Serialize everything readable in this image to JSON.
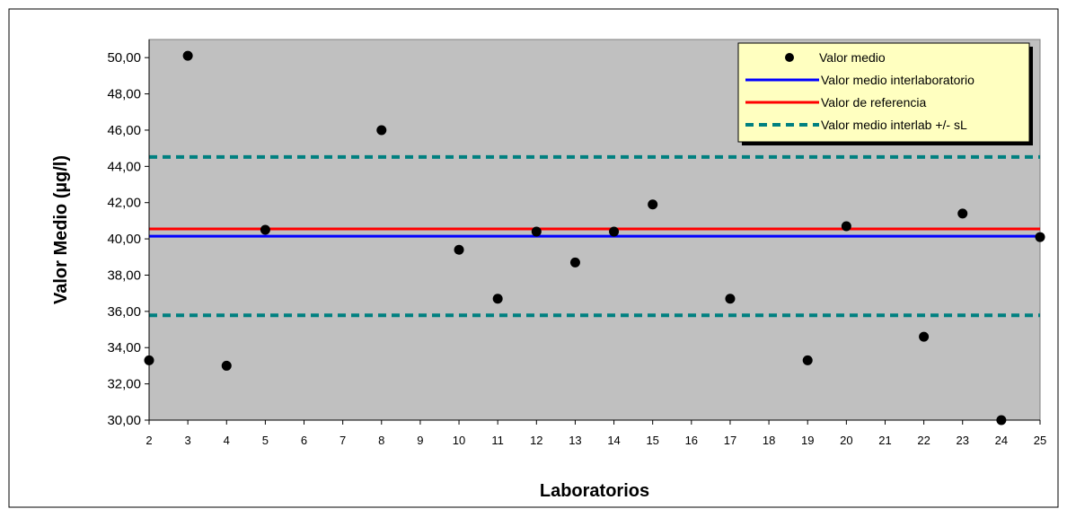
{
  "chart_data": {
    "type": "scatter",
    "xlabel": "Laboratorios",
    "ylabel": "Valor Medio (µg/l)",
    "x_categories": [
      "2",
      "3",
      "4",
      "5",
      "6",
      "7",
      "8",
      "9",
      "10",
      "11",
      "12",
      "13",
      "14",
      "15",
      "16",
      "17",
      "18",
      "19",
      "20",
      "21",
      "22",
      "23",
      "24",
      "25"
    ],
    "y_ticks": [
      "30,00",
      "32,00",
      "34,00",
      "36,00",
      "38,00",
      "40,00",
      "42,00",
      "44,00",
      "46,00",
      "48,00",
      "50,00"
    ],
    "ylim": [
      30,
      51
    ],
    "grid": false,
    "legend_position": "top-right",
    "series": [
      {
        "name": "Valor medio",
        "kind": "points",
        "color": "#000000",
        "points": [
          {
            "x": "2",
            "y": 33.3
          },
          {
            "x": "3",
            "y": 50.1
          },
          {
            "x": "4",
            "y": 33.0
          },
          {
            "x": "5",
            "y": 40.5
          },
          {
            "x": "8",
            "y": 46.0
          },
          {
            "x": "10",
            "y": 39.4
          },
          {
            "x": "11",
            "y": 36.7
          },
          {
            "x": "12",
            "y": 40.4
          },
          {
            "x": "13",
            "y": 38.7
          },
          {
            "x": "14",
            "y": 40.4
          },
          {
            "x": "15",
            "y": 41.9
          },
          {
            "x": "17",
            "y": 36.7
          },
          {
            "x": "19",
            "y": 33.3
          },
          {
            "x": "20",
            "y": 40.7
          },
          {
            "x": "22",
            "y": 34.6
          },
          {
            "x": "23",
            "y": 41.4
          },
          {
            "x": "24",
            "y": 30.0
          },
          {
            "x": "25",
            "y": 40.1
          }
        ]
      },
      {
        "name": "Valor medio interlaboratorio",
        "kind": "hline",
        "color": "#0000ff",
        "y": 40.15
      },
      {
        "name": "Valor de referencia",
        "kind": "hline",
        "color": "#ff0000",
        "y": 40.55
      },
      {
        "name": "Valor medio interlab  +/- sL",
        "kind": "hline-dashed",
        "color": "#008080",
        "y": [
          35.78,
          44.52
        ]
      }
    ],
    "colors": {
      "plot_background": "#c0c0c0",
      "legend_background": "#ffffc0"
    }
  }
}
